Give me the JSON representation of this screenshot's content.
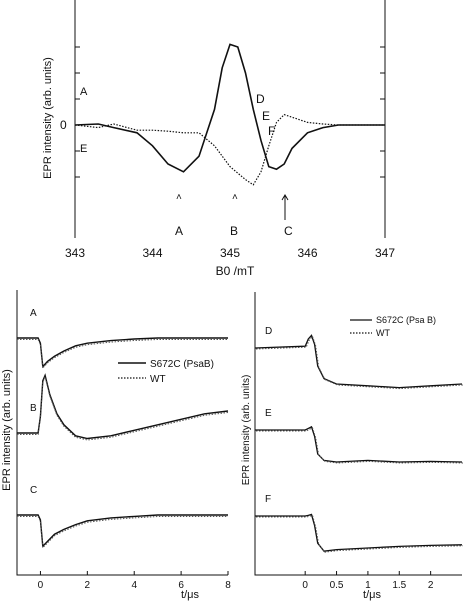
{
  "chart_data": [
    {
      "type": "line",
      "xlabel": "B0 /mT",
      "ylabel": "EPR intensity (arb. units)",
      "xlim": [
        343,
        347
      ],
      "ylim": [
        -1.3,
        1.6
      ],
      "x_ticks": [
        "343",
        "344",
        "345",
        "346",
        "347"
      ],
      "y_tick_zero": "0",
      "series": [
        {
          "style": "solid",
          "x": [
            343.0,
            343.3,
            343.5,
            343.8,
            344.0,
            344.2,
            344.4,
            344.6,
            344.8,
            344.9,
            345.0,
            345.1,
            345.2,
            345.3,
            345.4,
            345.5,
            345.6,
            345.7,
            345.8,
            346.0,
            346.2,
            346.4,
            347.0
          ],
          "y": [
            0.0,
            0.02,
            -0.05,
            -0.15,
            -0.4,
            -0.75,
            -0.9,
            -0.6,
            0.3,
            1.1,
            1.55,
            1.5,
            1.0,
            0.3,
            -0.3,
            -0.8,
            -0.85,
            -0.75,
            -0.45,
            -0.15,
            -0.05,
            0.0,
            0.0
          ]
        },
        {
          "style": "dotted",
          "x": [
            343.0,
            343.3,
            343.5,
            343.8,
            344.0,
            344.2,
            344.4,
            344.6,
            344.8,
            345.0,
            345.2,
            345.3,
            345.4,
            345.5,
            345.6,
            345.7,
            345.8,
            346.0,
            346.2,
            346.4,
            347.0
          ],
          "y": [
            0.0,
            -0.05,
            0.02,
            -0.1,
            -0.1,
            -0.12,
            -0.15,
            -0.15,
            -0.4,
            -0.8,
            -1.05,
            -1.15,
            -0.9,
            -0.4,
            0.05,
            0.2,
            0.15,
            0.05,
            0.02,
            0.0,
            0.0
          ]
        }
      ],
      "annotations": [
        "A",
        "B",
        "C",
        "D",
        "E",
        "F",
        "A",
        "E"
      ]
    },
    {
      "type": "line",
      "ylabel": "EPR intensity (arb. units)",
      "xlabel": "t/μs",
      "xlim": [
        -1,
        8
      ],
      "x_ticks": [
        "0",
        "2",
        "4",
        "6",
        "8"
      ],
      "legend_position": "center-right",
      "series": [
        {
          "name": "S672C (PsaB)",
          "style": "solid"
        },
        {
          "name": "WT",
          "style": "dotted"
        }
      ],
      "traces": [
        {
          "label": "A",
          "x": [
            -1.0,
            -0.1,
            0.0,
            0.1,
            0.3,
            0.6,
            1.0,
            1.5,
            2.0,
            3.0,
            4.0,
            5.0,
            6.0,
            7.0,
            8.0
          ],
          "y": [
            0.0,
            0.0,
            -0.1,
            -0.55,
            -0.45,
            -0.35,
            -0.25,
            -0.15,
            -0.1,
            -0.05,
            -0.02,
            0.0,
            0.0,
            0.0,
            0.0
          ]
        },
        {
          "label": "B",
          "x": [
            -1.0,
            -0.1,
            0.0,
            0.1,
            0.2,
            0.4,
            0.7,
            1.0,
            1.5,
            2.0,
            3.0,
            4.0,
            5.0,
            6.0,
            7.0,
            8.0
          ],
          "y": [
            0.0,
            0.0,
            0.3,
            0.95,
            1.05,
            0.7,
            0.35,
            0.15,
            -0.05,
            -0.1,
            -0.05,
            0.05,
            0.15,
            0.25,
            0.35,
            0.4
          ]
        },
        {
          "label": "C",
          "x": [
            -1.0,
            -0.1,
            0.0,
            0.1,
            0.3,
            0.6,
            1.0,
            1.5,
            2.0,
            3.0,
            4.0,
            5.0,
            6.0,
            7.0,
            8.0
          ],
          "y": [
            0.0,
            0.0,
            -0.1,
            -0.65,
            -0.55,
            -0.4,
            -0.3,
            -0.2,
            -0.12,
            -0.06,
            -0.03,
            0.0,
            0.0,
            0.0,
            0.0
          ]
        }
      ]
    },
    {
      "type": "line",
      "ylabel": "EPR intensity (arb. units)",
      "xlabel": "t/μs",
      "xlim": [
        -0.8,
        2.5
      ],
      "x_ticks": [
        "0",
        "0.5",
        "1",
        "1.5",
        "2"
      ],
      "legend_position": "top-right",
      "series": [
        {
          "name": "S672C (Psa B)",
          "style": "solid"
        },
        {
          "name": "WT",
          "style": "dotted"
        }
      ],
      "traces": [
        {
          "label": "D",
          "x": [
            -0.8,
            0.0,
            0.05,
            0.1,
            0.15,
            0.2,
            0.3,
            0.5,
            1.0,
            1.5,
            2.0,
            2.5
          ],
          "y": [
            0.0,
            0.05,
            0.25,
            0.35,
            0.1,
            -0.5,
            -0.85,
            -1.0,
            -1.05,
            -1.1,
            -1.05,
            -1.0
          ]
        },
        {
          "label": "E",
          "x": [
            -0.8,
            0.0,
            0.05,
            0.1,
            0.15,
            0.2,
            0.3,
            0.5,
            1.0,
            1.5,
            2.0,
            2.5
          ],
          "y": [
            0.0,
            0.0,
            0.05,
            0.1,
            -0.2,
            -0.75,
            -0.95,
            -1.0,
            -0.95,
            -1.0,
            -0.98,
            -1.0
          ]
        },
        {
          "label": "F",
          "x": [
            -0.8,
            0.0,
            0.05,
            0.1,
            0.15,
            0.2,
            0.3,
            0.5,
            1.0,
            1.5,
            2.0,
            2.5
          ],
          "y": [
            0.0,
            0.0,
            0.02,
            0.05,
            -0.3,
            -0.85,
            -1.1,
            -1.05,
            -1.0,
            -0.95,
            -0.92,
            -0.9
          ]
        }
      ]
    }
  ]
}
